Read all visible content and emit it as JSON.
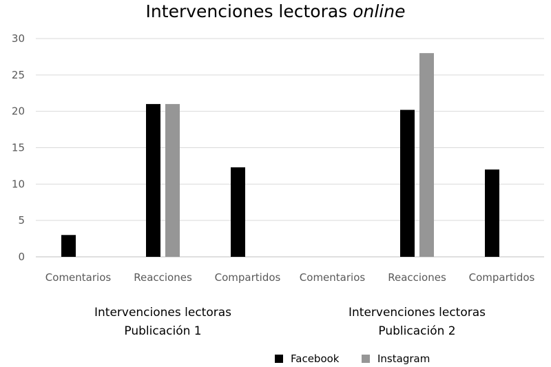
{
  "chart_data": {
    "type": "bar",
    "title_main": "Intervenciones lectoras",
    "title_italic": "online",
    "xlabel": "",
    "ylabel": "",
    "ylim": [
      0,
      30
    ],
    "yticks": [
      0,
      5,
      10,
      15,
      20,
      25,
      30
    ],
    "grid": true,
    "legend_position": "bottom",
    "groups": [
      {
        "label_line1": "Intervenciones lectoras",
        "label_line2": "Publicación 1",
        "categories": [
          "Comentarios",
          "Reacciones",
          "Compartidos"
        ]
      },
      {
        "label_line1": "Intervenciones lectoras",
        "label_line2": "Publicación 2",
        "categories": [
          "Comentarios",
          "Reacciones",
          "Compartidos"
        ]
      }
    ],
    "series": [
      {
        "name": "Facebook",
        "color": "#000000",
        "values": [
          3,
          21,
          12.3,
          0,
          20.2,
          12
        ]
      },
      {
        "name": "Instagram",
        "color": "#969696",
        "values": [
          0,
          21,
          0,
          0,
          28,
          0
        ]
      }
    ]
  }
}
